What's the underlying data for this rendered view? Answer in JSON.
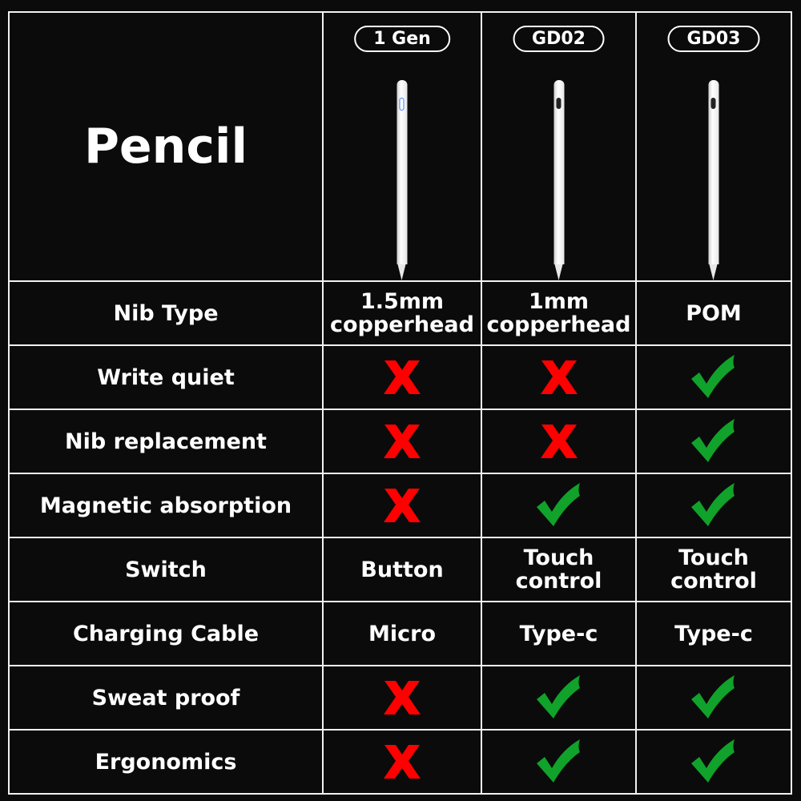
{
  "title": "Pencil",
  "models": [
    {
      "name": "1 Gen",
      "button_color": "#3a7bff"
    },
    {
      "name": "GD02",
      "button_color": "#222222"
    },
    {
      "name": "GD03",
      "button_color": "#222222"
    }
  ],
  "colors": {
    "cross": "#ff0000",
    "check": "#10a22a",
    "background": "#0b0b0b",
    "grid": "#f2f2f2"
  },
  "rows": [
    {
      "label": "Nib Type",
      "values": [
        {
          "type": "text",
          "text": "1.5mm copperhead"
        },
        {
          "type": "text",
          "text": "1mm copperhead"
        },
        {
          "type": "text",
          "text": "POM"
        }
      ]
    },
    {
      "label": "Write quiet",
      "values": [
        {
          "type": "cross"
        },
        {
          "type": "cross"
        },
        {
          "type": "check"
        }
      ]
    },
    {
      "label": "Nib replacement",
      "values": [
        {
          "type": "cross"
        },
        {
          "type": "cross"
        },
        {
          "type": "check"
        }
      ]
    },
    {
      "label": "Magnetic absorption",
      "values": [
        {
          "type": "cross"
        },
        {
          "type": "check"
        },
        {
          "type": "check"
        }
      ]
    },
    {
      "label": "Switch",
      "values": [
        {
          "type": "text",
          "text": "Button"
        },
        {
          "type": "text",
          "text": "Touch control"
        },
        {
          "type": "text",
          "text": "Touch control"
        }
      ]
    },
    {
      "label": "Charging Cable",
      "values": [
        {
          "type": "text",
          "text": "Micro"
        },
        {
          "type": "text",
          "text": "Type-c"
        },
        {
          "type": "text",
          "text": "Type-c"
        }
      ]
    },
    {
      "label": "Sweat proof",
      "values": [
        {
          "type": "cross"
        },
        {
          "type": "check"
        },
        {
          "type": "check"
        }
      ]
    },
    {
      "label": "Ergonomics",
      "values": [
        {
          "type": "cross"
        },
        {
          "type": "check"
        },
        {
          "type": "check"
        }
      ]
    }
  ]
}
